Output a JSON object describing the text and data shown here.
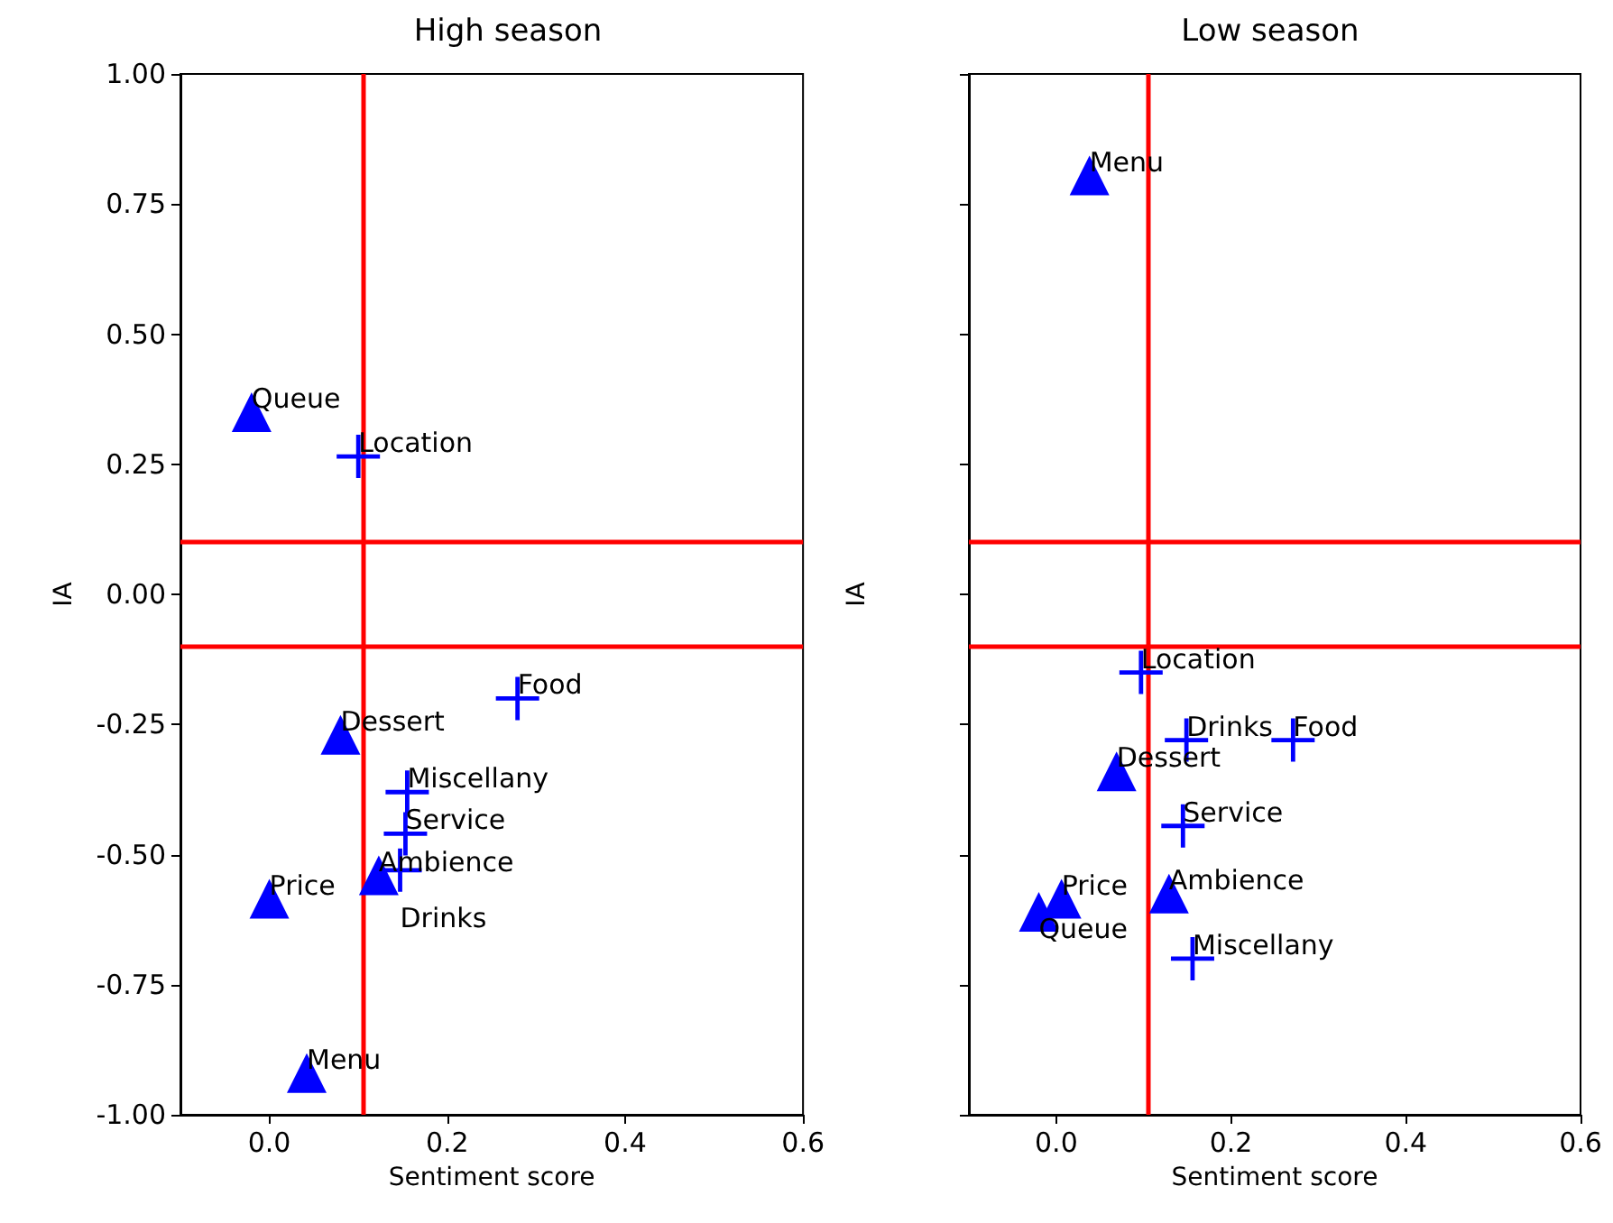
{
  "chart_data": [
    {
      "type": "scatter",
      "title": "High season",
      "xlabel": "Sentiment score",
      "ylabel": "IA",
      "xlim": [
        -0.1,
        0.6
      ],
      "ylim": [
        -1,
        1
      ],
      "xticks": [
        {
          "value": 0,
          "label": "0.0"
        },
        0.2,
        0.4,
        0.6
      ],
      "yticks": [
        {
          "value": -1,
          "label": "-1.00"
        },
        {
          "value": -0.75,
          "label": "-0.75"
        },
        {
          "value": -0.5,
          "label": "-0.50"
        },
        {
          "value": -0.25,
          "label": "-0.25"
        },
        {
          "value": 0,
          "label": "0.00"
        },
        {
          "value": 0.25,
          "label": "0.25"
        },
        {
          "value": 0.5,
          "label": "0.50"
        },
        {
          "value": 0.75,
          "label": "0.75"
        },
        {
          "value": 1,
          "label": "1.00"
        }
      ],
      "grid": false,
      "series": [
        {
          "marker": "triangle",
          "color": "#0000ff",
          "x": [
            -0.02,
            0.08,
            0.123,
            0.0,
            0.042
          ],
          "values": [
            0.35,
            -0.27,
            -0.54,
            -0.585,
            -0.92
          ]
        },
        {
          "marker": "cross",
          "color": "#0000ff",
          "x": [
            0.1,
            0.279,
            0.155,
            0.153,
            0.147
          ],
          "values": [
            0.265,
            -0.2,
            -0.38,
            -0.46,
            -0.53
          ]
        }
      ],
      "annotations": [
        {
          "text": "Queue",
          "x": -0.02,
          "y": 0.35
        },
        {
          "text": "Dessert",
          "x": 0.08,
          "y": -0.27
        },
        {
          "text": "Ambience",
          "x": 0.123,
          "y": -0.54
        },
        {
          "text": "Price",
          "x": 0.0,
          "y": -0.585
        },
        {
          "text": "Menu",
          "x": 0.042,
          "y": -0.92
        },
        {
          "text": "Location",
          "x": 0.1,
          "y": 0.265
        },
        {
          "text": "Food",
          "x": 0.279,
          "y": -0.2
        },
        {
          "text": "Miscellany",
          "x": 0.155,
          "y": -0.38
        },
        {
          "text": "Service",
          "x": 0.153,
          "y": -0.46
        },
        {
          "text": "Drinks",
          "x": 0.147,
          "y": -0.53
        }
      ],
      "ref_lines": [
        {
          "axis": "x",
          "value": 0.105,
          "color": "#ff0000"
        },
        {
          "axis": "y",
          "value": 0.1,
          "color": "#ff0000"
        },
        {
          "axis": "y",
          "value": -0.1,
          "color": "#ff0000"
        }
      ]
    },
    {
      "type": "scatter",
      "title": "Low season",
      "xlabel": "Sentiment score",
      "ylabel": "IA",
      "xlim": [
        -0.1,
        0.6
      ],
      "ylim": [
        -1,
        1
      ],
      "xticks": [
        {
          "value": 0,
          "label": "0.0"
        },
        0.2,
        0.4,
        0.6
      ],
      "yticks": [
        -1,
        -0.75,
        -0.5,
        -0.25,
        0,
        0.25,
        0.5,
        0.75,
        1
      ],
      "tick_labels": "x",
      "grid": false,
      "series": [
        {
          "marker": "triangle",
          "color": "#0000ff",
          "x": [
            0.038,
            0.069,
            0.129,
            0.006,
            -0.02
          ],
          "values": [
            0.805,
            -0.34,
            -0.575,
            -0.585,
            -0.61
          ]
        },
        {
          "marker": "cross",
          "color": "#0000ff",
          "x": [
            0.097,
            0.149,
            0.271,
            0.145,
            0.156
          ],
          "values": [
            -0.15,
            -0.28,
            -0.28,
            -0.445,
            -0.7
          ]
        }
      ],
      "annotations": [
        {
          "text": "Menu",
          "x": 0.038,
          "y": 0.805
        },
        {
          "text": "Dessert",
          "x": 0.069,
          "y": -0.34
        },
        {
          "text": "Ambience",
          "x": 0.129,
          "y": -0.575
        },
        {
          "text": "Price",
          "x": 0.006,
          "y": -0.585
        },
        {
          "text": "Queue",
          "x": -0.02,
          "y": -0.61
        },
        {
          "text": "Location",
          "x": 0.097,
          "y": -0.15
        },
        {
          "text": "Drinks",
          "x": 0.149,
          "y": -0.28
        },
        {
          "text": "Food",
          "x": 0.271,
          "y": -0.28
        },
        {
          "text": "Service",
          "x": 0.145,
          "y": -0.445
        },
        {
          "text": "Miscellany",
          "x": 0.156,
          "y": -0.7
        }
      ],
      "ref_lines": [
        {
          "axis": "x",
          "value": 0.105,
          "color": "#ff0000"
        },
        {
          "axis": "y",
          "value": 0.1,
          "color": "#ff0000"
        },
        {
          "axis": "y",
          "value": -0.1,
          "color": "#ff0000"
        }
      ]
    }
  ]
}
